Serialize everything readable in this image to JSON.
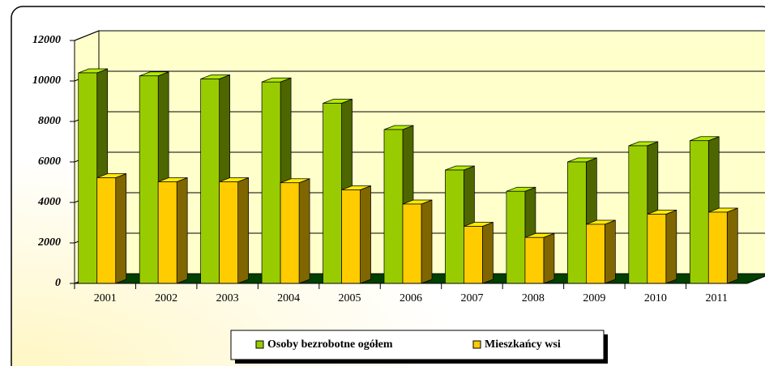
{
  "chart_data": {
    "type": "bar3d",
    "categories": [
      "2001",
      "2002",
      "2003",
      "2004",
      "2005",
      "2006",
      "2007",
      "2008",
      "2009",
      "2010",
      "2011"
    ],
    "series": [
      {
        "name": "Osoby bezrobotne ogółem",
        "color": "#99cc00",
        "values": [
          10400,
          10250,
          10100,
          9950,
          8900,
          7600,
          5600,
          4550,
          6000,
          6800,
          7050
        ]
      },
      {
        "name": "Mieszkańcy wsi",
        "color": "#ffcc00",
        "values": [
          5300,
          5100,
          5100,
          5050,
          4700,
          4000,
          2900,
          2350,
          3000,
          3500,
          3600
        ]
      }
    ],
    "ylim": [
      0,
      12000
    ],
    "yticks": [
      0,
      2000,
      4000,
      6000,
      8000,
      10000,
      12000
    ],
    "grid": true
  }
}
